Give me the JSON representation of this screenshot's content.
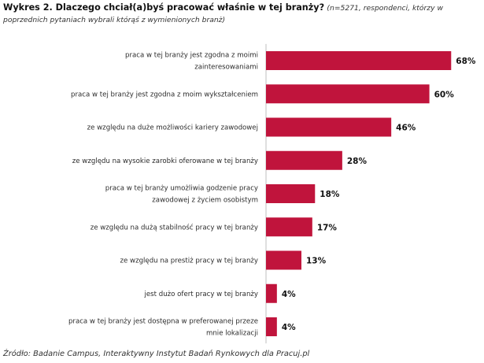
{
  "header": {
    "title": "Wykres 2. Dlaczego chciał(a)byś pracować właśnie w tej branży?",
    "note": "(n=5271, respondenci, którzy w poprzednich pytaniach wybrali którąś z wymienionych branż)"
  },
  "source": "Źródło: Badanie Campus, Interaktywny Instytut Badań Rynkowych dla Pracuj.pl",
  "chart_data": {
    "type": "bar",
    "orientation": "horizontal",
    "title": "Wykres 2. Dlaczego chciał(a)byś pracować właśnie w tej branży?",
    "xlabel": "",
    "ylabel": "",
    "xlim": [
      0,
      100
    ],
    "grid": false,
    "legend": "none",
    "bar_color": "#c0143c",
    "categories": [
      [
        "praca w tej branży jest zgodna z moimi",
        "zainteresowaniami"
      ],
      [
        "praca w tej branży jest zgodna z moim wykształceniem"
      ],
      [
        "ze względu na duże możliwości kariery zawodowej"
      ],
      [
        "ze względu na wysokie zarobki oferowane w tej branży"
      ],
      [
        "praca w tej branży umożliwia godzenie pracy",
        "zawodowej z życiem osobistym"
      ],
      [
        "ze względu na dużą stabilność pracy w tej branży"
      ],
      [
        "ze względu na prestiż pracy w tej branży"
      ],
      [
        "jest dużo ofert pracy w tej branży"
      ],
      [
        "praca w tej branży jest dostępna w preferowanej przeze",
        "mnie lokalizacji"
      ]
    ],
    "values": [
      68,
      60,
      46,
      28,
      18,
      17,
      13,
      4,
      4
    ],
    "value_labels": [
      "68%",
      "60%",
      "46%",
      "28%",
      "18%",
      "17%",
      "13%",
      "4%",
      "4%"
    ]
  }
}
